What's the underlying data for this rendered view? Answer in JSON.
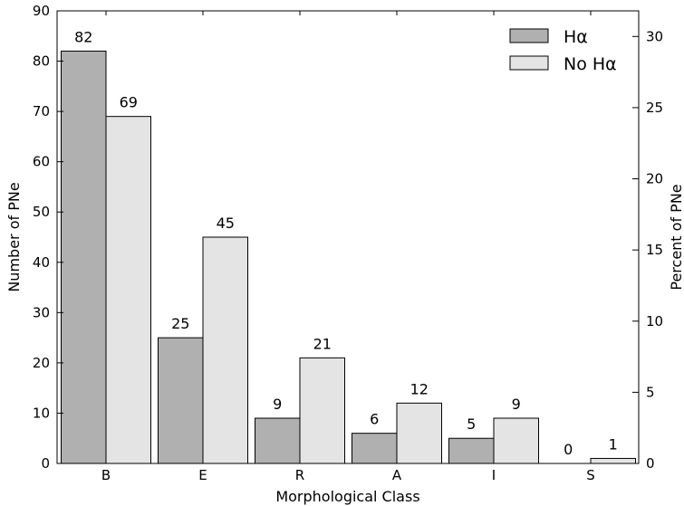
{
  "chart_data": {
    "type": "bar",
    "categories": [
      "B",
      "E",
      "R",
      "A",
      "I",
      "S"
    ],
    "series": [
      {
        "name": "Hα",
        "values": [
          82,
          25,
          9,
          6,
          5,
          0
        ],
        "color": "#b0b0b0"
      },
      {
        "name": "No Hα",
        "values": [
          69,
          45,
          21,
          12,
          9,
          1
        ],
        "color": "#e4e4e4"
      }
    ],
    "xlabel": "Morphological Class",
    "ylabel": "Number of PNe",
    "y2label": "Percent of PNe",
    "ylim": [
      0,
      90
    ],
    "yticks": [
      0,
      10,
      20,
      30,
      40,
      50,
      60,
      70,
      80,
      90
    ],
    "y2lim": [
      0,
      31.8
    ],
    "y2ticks": [
      0,
      5,
      10,
      15,
      20,
      25,
      30
    ],
    "legend": "top-right",
    "grid": false
  }
}
